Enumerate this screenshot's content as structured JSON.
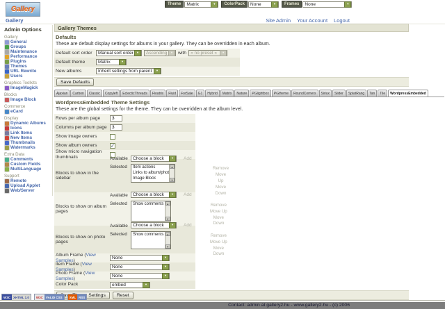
{
  "topbar": {
    "theme_label": "Theme",
    "theme_value": "Matrix",
    "colorpack_label": "ColorPack",
    "colorpack_value": "None",
    "frames_label": "Frames",
    "frames_value": "None"
  },
  "header": {
    "logo_text": "Gallery",
    "breadcrumb": "Gallery",
    "links": [
      "Site Admin",
      "Your Account",
      "Logout"
    ]
  },
  "sidebar": {
    "title": "Admin Options",
    "groups": [
      {
        "label": "Gallery",
        "items": [
          {
            "label": "General",
            "icon": "general-icon",
            "color": "#8f9bd4"
          },
          {
            "label": "Groups",
            "icon": "groups-icon",
            "color": "#4aa24a"
          },
          {
            "label": "Maintenance",
            "icon": "maintenance-icon",
            "color": "#a9a9a9"
          },
          {
            "label": "Performance",
            "icon": "performance-icon",
            "color": "#e0a52a"
          },
          {
            "label": "Plugins",
            "icon": "plugins-icon",
            "color": "#7a9e49"
          },
          {
            "label": "Themes",
            "icon": "themes-icon",
            "color": "#6a7dbb"
          },
          {
            "label": "URL Rewrite",
            "icon": "url-rewrite-icon",
            "color": "#3a66c8"
          },
          {
            "label": "Users",
            "icon": "users-icon",
            "color": "#c8a23a"
          }
        ]
      },
      {
        "label": "Graphics Toolkits",
        "items": [
          {
            "label": "ImageMagick",
            "icon": "imagemagick-icon",
            "color": "#8a5cc8"
          }
        ]
      },
      {
        "label": "Blocks",
        "items": [
          {
            "label": "Image Block",
            "icon": "image-block-icon",
            "color": "#c85c5c"
          }
        ]
      },
      {
        "label": "Commerce",
        "items": [
          {
            "label": "eCard",
            "icon": "ecard-icon",
            "color": "#4a8ac8"
          }
        ]
      },
      {
        "label": "Display",
        "items": [
          {
            "label": "Dynamic Albums",
            "icon": "dynamic-albums-icon",
            "color": "#c87a3a"
          },
          {
            "label": "Icons",
            "icon": "icons-icon",
            "color": "#c83a3a"
          },
          {
            "label": "Link Items",
            "icon": "link-items-icon",
            "color": "#7a7a9e"
          },
          {
            "label": "New Items",
            "icon": "new-items-icon",
            "color": "#d04438"
          },
          {
            "label": "Thumbnails",
            "icon": "thumbnails-icon",
            "color": "#4a6ac8"
          },
          {
            "label": "Watermarks",
            "icon": "watermarks-icon",
            "color": "#9e9e49"
          }
        ]
      },
      {
        "label": "Extra Data",
        "items": [
          {
            "label": "Comments",
            "icon": "comments-icon",
            "color": "#49b08a"
          },
          {
            "label": "Custom Fields",
            "icon": "custom-fields-icon",
            "color": "#b08a49"
          },
          {
            "label": "MultiLanguage",
            "icon": "multilanguage-icon",
            "color": "#8ab049"
          }
        ]
      },
      {
        "label": "Support",
        "items": [
          {
            "label": "Remote",
            "icon": "remote-icon",
            "color": "#9e6a49"
          },
          {
            "label": "Upload Applet",
            "icon": "upload-applet-icon",
            "color": "#496ab0"
          },
          {
            "label": "Web/Server",
            "icon": "web-server-icon",
            "color": "#6a6a6a"
          }
        ]
      }
    ]
  },
  "main": {
    "page_title": "Gallery Themes",
    "defaults": {
      "title": "Defaults",
      "description": "These are default display settings for albums in your gallery. They can be overridden in each album.",
      "sort_row": {
        "label": "Default sort order",
        "value": "Manual sort order",
        "order_value": "Ascending",
        "with_label": "with",
        "preset_value": "« no preset »"
      },
      "theme_row": {
        "label": "Default theme",
        "value": "Matrix"
      },
      "albums_row": {
        "label": "New albums",
        "value": "Inherit settings from parent album"
      },
      "save_label": "Save Defaults"
    },
    "tabs": {
      "active": "WordpressEmbedded",
      "items": [
        "Ajaxian",
        "Carbon",
        "Classic",
        "Copyleft",
        "EclecticThreads",
        "Floatrix",
        "Fluid",
        "ForSale",
        "G1",
        "Hybrid",
        "Matrix",
        "Nature",
        "PGlightbox",
        "PGtheme",
        "RoundCorners",
        "Siriux",
        "Slider",
        "SplatRang",
        "Tan",
        "Tile",
        "WordpressEmbedded"
      ]
    },
    "theme_settings": {
      "title": "WordpressEmbedded Theme Settings",
      "description": "These are the global settings for the theme. They can be overridden at the album level.",
      "rows_per_page": {
        "label": "Rows per album page",
        "value": "3"
      },
      "columns_per_page": {
        "label": "Columns per album page",
        "value": "3"
      },
      "show_image_owners": {
        "label": "Show image owners",
        "checked": false
      },
      "show_album_owners": {
        "label": "Show album owners",
        "checked": true
      },
      "show_micro_nav": {
        "label": "Show micro navigation thumbnails",
        "checked": false
      },
      "sidebar_blocks": {
        "label": "Blocks to show in the sidebar",
        "available_label": "Available",
        "available_value": "Choose a block",
        "add_label": "Add",
        "selected_label": "Selected",
        "selected": [
          "Item actions",
          "Links to album/photo peers",
          "Image Block"
        ],
        "actions": [
          "Remove",
          "Move Up",
          "Move Down"
        ]
      },
      "album_blocks": {
        "label": "Blocks to show on album pages",
        "available_label": "Available",
        "available_value": "Choose a block",
        "add_label": "Add",
        "selected_label": "Selected",
        "selected": [
          "Show comments"
        ],
        "actions": [
          "Remove",
          "Move Up",
          "Move Down"
        ]
      },
      "photo_blocks": {
        "label": "Blocks to show on photo pages",
        "available_label": "Available",
        "available_value": "Choose a block",
        "add_label": "Add",
        "selected_label": "Selected",
        "selected": [
          "Show comments"
        ],
        "actions": [
          "Remove",
          "Move Up",
          "Move Down"
        ]
      },
      "album_frame": {
        "label": "Album Frame",
        "link": "View Samples",
        "value": "None"
      },
      "item_frame": {
        "label": "Item Frame",
        "link": "View Samples",
        "value": "None"
      },
      "photo_frame": {
        "label": "Photo Frame",
        "link": "View Samples",
        "value": "None"
      },
      "color_pack": {
        "label": "Color Pack",
        "value": "embed"
      },
      "save_label": "Save Theme Settings",
      "reset_label": "Reset"
    },
    "badges": [
      {
        "name": "xhtml-badge",
        "left": "W3C",
        "right": "XHTML 1.0",
        "left_bg": "#3a4d9e",
        "left_color": "#ffffff",
        "right_bg": "#d8d8d0",
        "right_color": "#3a4d9e"
      },
      {
        "name": "css-badge",
        "left": "W3C",
        "right": "VALID CSS",
        "left_bg": "#e8e8e8",
        "left_color": "#c03030",
        "right_bg": "#7189bc",
        "right_color": "#ffffff"
      },
      {
        "name": "rss-badge",
        "left": "XML",
        "right": "RSS",
        "left_bg": "#e05a00",
        "left_color": "#ffffff",
        "right_bg": "#7189bc",
        "right_color": "#ffffff"
      }
    ],
    "footer_text": "Contact: admin at gallery2.hu - www.gallery2.hu - (c) 2006"
  },
  "icons": {
    "select_arrow": "▼",
    "scroll_up": "▲",
    "scroll_down": "▼",
    "check": "✓"
  }
}
